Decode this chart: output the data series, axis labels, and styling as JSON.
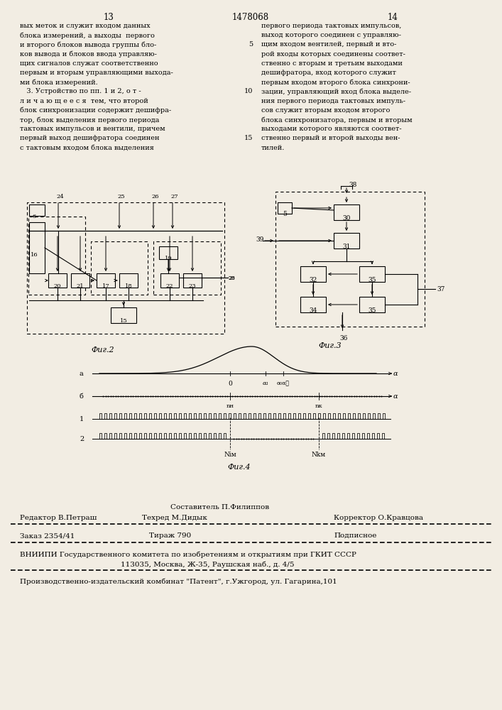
{
  "page_numbers": [
    "13",
    "1478068",
    "14"
  ],
  "left_text": [
    "вых меток и служит входом данных",
    "блока измерений, а выходы  первого",
    "и второго блоков вывода группы бло-",
    "ков вывода и блоков ввода управляю-",
    "щих сигналов служат соответственно",
    "первым и вторым управляющими выхода-",
    "ми блока измерений.",
    "   3. Устройство по пп. 1 и 2, о т -",
    "л и ч а ю щ е е с я  тем, что второй",
    "блок синхронизации содержит дешифра-",
    "тор, блок выделения первого периода",
    "тактовых импульсов и вентили, причем",
    "первый выход дешифратора соединен",
    "с тактовым входом блока выделения"
  ],
  "right_text": [
    "первого периода тактовых импульсов,",
    "выход которого соединен с управляю-",
    "щим входом вентилей, первый и вто-",
    "рой входы которых соединены соответ-",
    "ственно с вторым и третьим выходами",
    "дешифратора, вход которого служит",
    "первым входом второго блока синхрони-",
    "зации, управляющий вход блока выделе-",
    "ния первого периода тактовых импуль-",
    "сов служит вторым входом второго",
    "блока синхронизатора, первым и вторым",
    "выходами которого являются соответ-",
    "ственно первый и второй выходы вен-",
    "тилей."
  ],
  "footer_compositor": "Составитель П.Филиппов",
  "footer_editor": "Редактор В.Петраш",
  "footer_techred": "Техред М.Дидык",
  "footer_corrector": "Корректор О.Кравцова",
  "footer_order": "Заказ 2354/41",
  "footer_tirazh": "Тираж 790",
  "footer_podpisnoe": "Подписное",
  "footer_vniipи": "ВНИИПИ Государственного комитета по изобретениям и открытиям при ГКИТ СССР",
  "footer_address": "113035, Москва, Ж-35, Раушская наб., д. 4/5",
  "footer_factory": "Производственно-издательский комбинат \"Патент\", г.Ужгород, ул. Гагарина,101",
  "bg_color": "#f2ede3"
}
